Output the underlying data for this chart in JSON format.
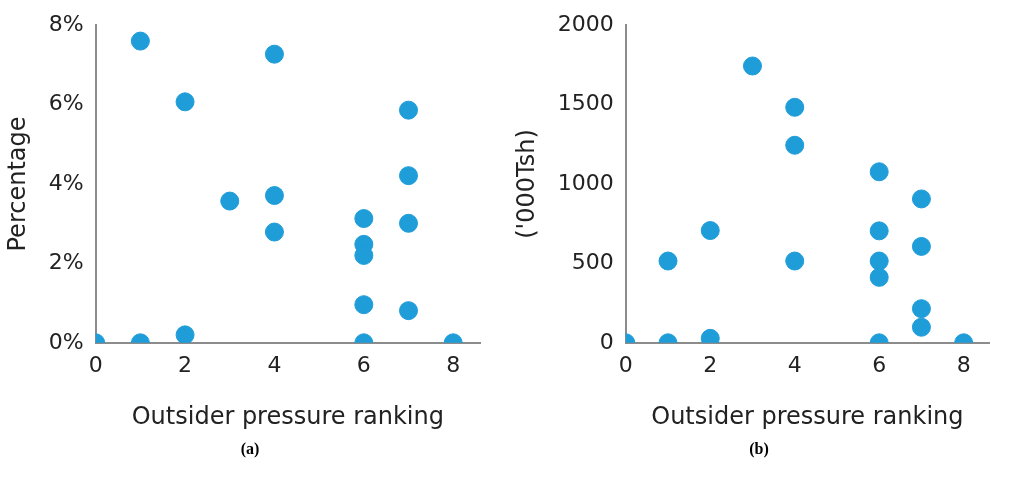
{
  "chart_data": [
    {
      "type": "scatter",
      "xlabel": "Outsider pressure ranking",
      "ylabel": "Percentage",
      "annotations": [
        "(a)"
      ],
      "marker": "circle",
      "grid": false,
      "xlim": [
        0,
        8.6
      ],
      "xticks": [
        0,
        2,
        4,
        6,
        8
      ],
      "ylim": [
        0,
        8
      ],
      "yticks": [
        {
          "value": 0,
          "label": "0%"
        },
        {
          "value": 2,
          "label": "2%"
        },
        {
          "value": 4,
          "label": "4%"
        },
        {
          "value": 6,
          "label": "6%"
        },
        {
          "value": 8,
          "label": "8%"
        }
      ],
      "series": [
        {
          "color": "#1f9dd9",
          "x": [
            0,
            1,
            1,
            2,
            2,
            3,
            4,
            4,
            4,
            6,
            6,
            6,
            6,
            6,
            7,
            7,
            7,
            7,
            8
          ],
          "values": [
            0,
            7.6,
            0,
            6.07,
            0.2,
            3.57,
            7.27,
            3.71,
            2.79,
            3.13,
            2.48,
            2.2,
            0.96,
            0,
            5.86,
            4.21,
            3.01,
            0.81,
            0
          ]
        }
      ]
    },
    {
      "type": "scatter",
      "xlabel": "Outsider pressure ranking",
      "ylabel": "('000Tsh)",
      "annotations": [
        "(b)"
      ],
      "marker": "circle",
      "grid": false,
      "xlim": [
        0,
        8.6
      ],
      "xticks": [
        0,
        2,
        4,
        6,
        8
      ],
      "ylim": [
        0,
        2000
      ],
      "yticks": [
        0,
        500,
        1000,
        1500,
        2000
      ],
      "series": [
        {
          "color": "#1f9dd9",
          "x": [
            0,
            1,
            1,
            2,
            2,
            3,
            4,
            4,
            4,
            6,
            6,
            6,
            6,
            6,
            7,
            7,
            7,
            7,
            8
          ],
          "values": [
            0,
            515,
            0,
            707,
            28,
            1743,
            1483,
            1244,
            515,
            1077,
            705,
            515,
            412,
            0,
            906,
            607,
            215,
            98,
            0
          ]
        }
      ]
    }
  ]
}
